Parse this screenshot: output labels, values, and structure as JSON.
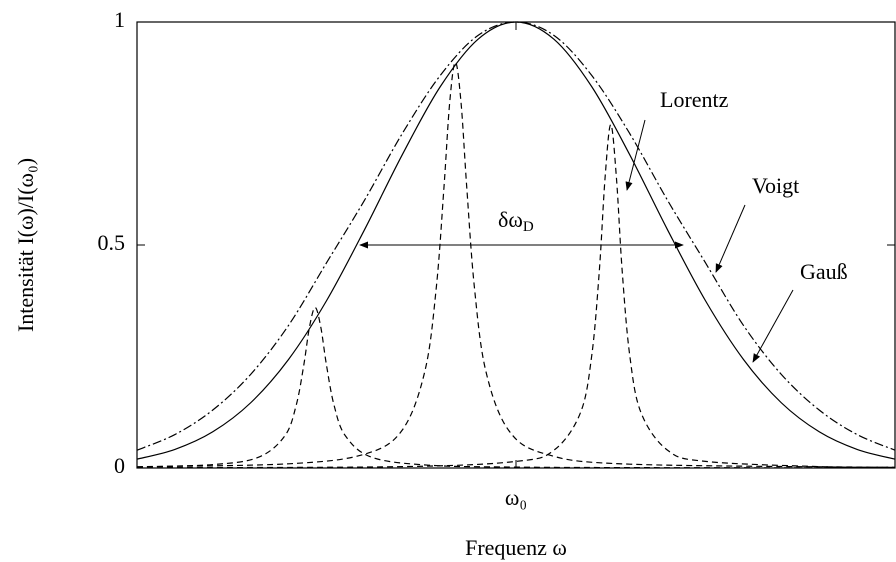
{
  "chart_data": {
    "type": "line",
    "xlabel": "Frequenz ω",
    "ylabel": "Intensität I(ω)/I(ω₀)",
    "xlim": [
      -1,
      1
    ],
    "ylim": [
      0,
      1
    ],
    "xticks": [
      {
        "value": 0,
        "label": "ω₀"
      }
    ],
    "yticks": [
      0,
      {
        "value": 0.5,
        "label": "0.5"
      },
      1
    ],
    "series": [
      {
        "color": "#000000",
        "dash": "solid",
        "x": [
          -1,
          -0.9,
          -0.8,
          -0.7,
          -0.6,
          -0.5,
          -0.4,
          -0.3,
          -0.2,
          -0.1,
          0,
          0.1,
          0.2,
          0.3,
          0.4,
          0.5,
          0.6,
          0.7,
          0.8,
          0.9,
          1
        ],
        "values": [
          0.0198,
          0.0417,
          0.0812,
          0.1463,
          0.2436,
          0.375,
          0.5338,
          0.7025,
          0.8548,
          0.9615,
          1,
          0.9615,
          0.8548,
          0.7025,
          0.5338,
          0.375,
          0.2436,
          0.1463,
          0.0812,
          0.0417,
          0.0198
        ]
      },
      {
        "color": "#000000",
        "dash": "dashdot",
        "x": [
          -1,
          -0.9,
          -0.8,
          -0.7,
          -0.6,
          -0.5,
          -0.4,
          -0.3,
          -0.2,
          -0.1,
          0,
          0.1,
          0.2,
          0.3,
          0.4,
          0.5,
          0.6,
          0.7,
          0.8,
          0.9,
          1
        ],
        "values": [
          0.04,
          0.075,
          0.13,
          0.21,
          0.32,
          0.46,
          0.6,
          0.75,
          0.88,
          0.97,
          1,
          0.97,
          0.88,
          0.75,
          0.6,
          0.46,
          0.32,
          0.21,
          0.13,
          0.075,
          0.04
        ]
      },
      {
        "color": "#000000",
        "dash": "dashed",
        "x": [
          -1,
          -0.8,
          -0.68,
          -0.61,
          -0.58,
          -0.56,
          -0.545,
          -0.53,
          -0.515,
          -0.5,
          -0.48,
          -0.45,
          -0.38,
          -0.23,
          0,
          0.4,
          1
        ],
        "values": [
          0.0026,
          0.0077,
          0.0239,
          0.072,
          0.1405,
          0.2304,
          0.3156,
          0.36,
          0.3156,
          0.2304,
          0.1405,
          0.072,
          0.0239,
          0.0063,
          0.002,
          0.0007,
          0.0003
        ]
      },
      {
        "color": "#000000",
        "dash": "dashed",
        "x": [
          -1,
          -0.6,
          -0.4,
          -0.3,
          -0.24,
          -0.21,
          -0.19,
          -0.175,
          -0.16,
          -0.145,
          -0.13,
          -0.11,
          -0.08,
          -0.02,
          0.08,
          0.3,
          1
        ],
        "values": [
          0.0026,
          0.0094,
          0.0309,
          0.0852,
          0.2187,
          0.4072,
          0.63,
          0.819,
          0.91,
          0.819,
          0.63,
          0.4072,
          0.2187,
          0.0852,
          0.0309,
          0.0086,
          0.0014
        ]
      },
      {
        "color": "#000000",
        "dash": "dashed",
        "x": [
          -1,
          -0.3,
          0,
          0.1,
          0.17,
          0.2,
          0.22,
          0.235,
          0.25,
          0.265,
          0.28,
          0.3,
          0.33,
          0.4,
          0.5,
          0.8,
          1
        ],
        "values": [
          0.0006,
          0.0031,
          0.0148,
          0.0398,
          0.1237,
          0.2532,
          0.4439,
          0.6505,
          0.77,
          0.6505,
          0.4439,
          0.2532,
          0.1237,
          0.0398,
          0.0148,
          0.0031,
          0.0017
        ]
      }
    ],
    "annotations": [
      {
        "text": "Lorentz"
      },
      {
        "text": "Voigt"
      },
      {
        "text": "Gauß"
      },
      {
        "text": "δω",
        "sub": "D"
      }
    ]
  }
}
